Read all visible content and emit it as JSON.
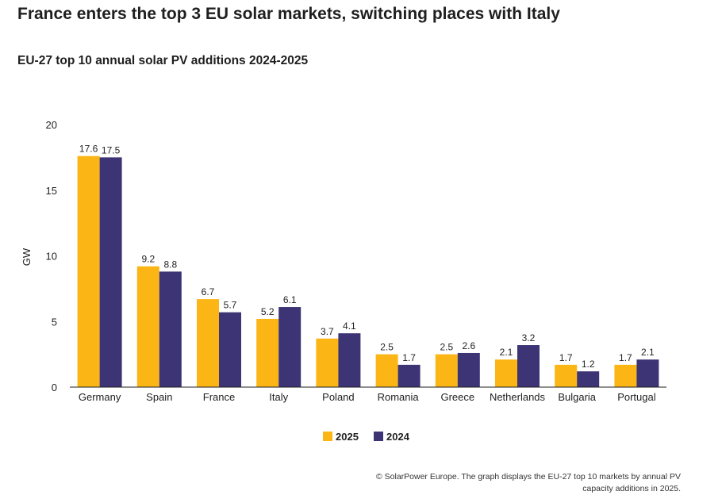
{
  "header": {
    "title": "France enters the top 3 EU solar markets, switching places with Italy",
    "subtitle": "EU-27 top 10 annual solar PV additions 2024-2025"
  },
  "footer": {
    "source": "© SolarPower Europe. The graph displays the EU-27 top 10 markets by annual PV capacity additions in 2025."
  },
  "chart_data": {
    "type": "bar",
    "categories": [
      "Germany",
      "Spain",
      "France",
      "Italy",
      "Poland",
      "Romania",
      "Greece",
      "Netherlands",
      "Bulgaria",
      "Portugal"
    ],
    "series": [
      {
        "name": "2025",
        "color": "#FBB615",
        "values": [
          17.6,
          9.2,
          6.7,
          5.2,
          3.7,
          2.5,
          2.5,
          2.1,
          1.7,
          1.7
        ]
      },
      {
        "name": "2024",
        "color": "#3C3474",
        "values": [
          17.5,
          8.8,
          5.7,
          6.1,
          4.1,
          1.7,
          2.6,
          3.2,
          1.2,
          2.1
        ]
      }
    ],
    "ylabel": "GW",
    "ylim": [
      0,
      20
    ],
    "yticks": [
      0,
      5,
      10,
      15,
      20
    ],
    "grid": false,
    "legend_position": "bottom-center",
    "data_labels": true
  }
}
